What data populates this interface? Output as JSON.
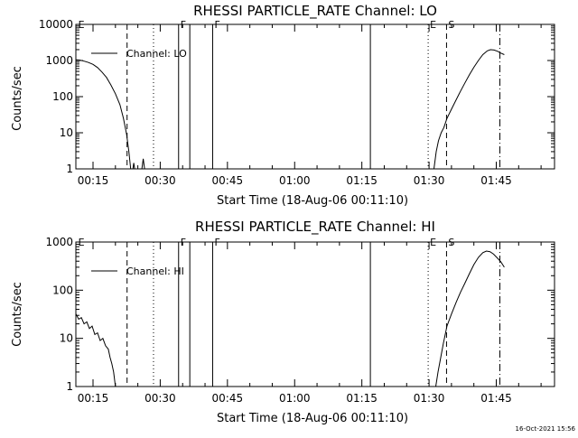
{
  "footer": {
    "timestamp": "16-Oct-2021 15:56"
  },
  "colors": {
    "foreground": "#000000",
    "background": "#ffffff"
  },
  "chart_data": [
    {
      "type": "line",
      "title": "RHESSI PARTICLE_RATE Channel: LO",
      "xlabel": "Start Time (18-Aug-06 00:11:10)",
      "ylabel": "Counts/sec",
      "yscale": "log",
      "xlim_minutes": [
        11.17,
        118.0
      ],
      "ylim": [
        1,
        10000
      ],
      "xtick_values": [
        15,
        30,
        45,
        60,
        75,
        90,
        105
      ],
      "xtick_labels": [
        "00:15",
        "00:30",
        "00:45",
        "01:00",
        "01:15",
        "01:30",
        "01:45"
      ],
      "ytick_values": [
        1,
        10,
        100,
        1000,
        10000
      ],
      "ytick_labels": [
        "1",
        "10",
        "100",
        "1000",
        "10000"
      ],
      "legend": {
        "label": "Channel: LO",
        "position": "top-left"
      },
      "markers": [
        {
          "t": 11.3,
          "style": "none",
          "label": "E"
        },
        {
          "t": 22.6,
          "style": "dashed",
          "label": ""
        },
        {
          "t": 28.5,
          "style": "dotted",
          "label": ""
        },
        {
          "t": 34.1,
          "style": "solid",
          "label": "F"
        },
        {
          "t": 36.6,
          "style": "solid",
          "label": ""
        },
        {
          "t": 41.7,
          "style": "solid",
          "label": "F"
        },
        {
          "t": 76.9,
          "style": "solid",
          "label": ""
        },
        {
          "t": 89.8,
          "style": "dotted",
          "label": "E"
        },
        {
          "t": 93.9,
          "style": "dashed",
          "label": "S"
        },
        {
          "t": 105.8,
          "style": "dashdot",
          "label": ""
        }
      ],
      "series": [
        {
          "segments": [
            [
              [
                11.2,
                1050
              ],
              [
                12.0,
                1030
              ],
              [
                13.0,
                960
              ],
              [
                14.0,
                880
              ],
              [
                15.0,
                780
              ],
              [
                16.0,
                640
              ],
              [
                17.0,
                480
              ],
              [
                18.0,
                340
              ],
              [
                19.0,
                210
              ],
              [
                20.0,
                120
              ],
              [
                21.0,
                60
              ],
              [
                21.8,
                25
              ],
              [
                22.5,
                9
              ],
              [
                23.0,
                3
              ],
              [
                23.4,
                1
              ]
            ],
            [
              [
                23.9,
                1
              ],
              [
                24.1,
                1.45
              ],
              [
                24.3,
                1
              ]
            ],
            [
              [
                25.9,
                1
              ],
              [
                26.2,
                1.9
              ],
              [
                26.5,
                1
              ]
            ],
            [
              [
                91.1,
                1
              ],
              [
                91.6,
                3
              ],
              [
                92.1,
                6
              ],
              [
                92.7,
                10
              ],
              [
                93.3,
                14
              ],
              [
                94.0,
                25
              ],
              [
                95.0,
                45
              ],
              [
                96.0,
                80
              ],
              [
                97.0,
                140
              ],
              [
                98.0,
                240
              ],
              [
                99.0,
                400
              ],
              [
                100.0,
                650
              ],
              [
                101.0,
                1000
              ],
              [
                102.0,
                1450
              ],
              [
                103.0,
                1850
              ],
              [
                103.7,
                2000
              ],
              [
                104.5,
                1950
              ],
              [
                105.3,
                1800
              ],
              [
                106.0,
                1600
              ],
              [
                106.8,
                1450
              ]
            ]
          ]
        }
      ]
    },
    {
      "type": "line",
      "title": "RHESSI PARTICLE_RATE Channel: HI",
      "xlabel": "Start Time (18-Aug-06 00:11:10)",
      "ylabel": "Counts/sec",
      "yscale": "log",
      "xlim_minutes": [
        11.17,
        118.0
      ],
      "ylim": [
        1,
        1000
      ],
      "xtick_values": [
        15,
        30,
        45,
        60,
        75,
        90,
        105
      ],
      "xtick_labels": [
        "00:15",
        "00:30",
        "00:45",
        "01:00",
        "01:15",
        "01:30",
        "01:45"
      ],
      "ytick_values": [
        1,
        10,
        100,
        1000
      ],
      "ytick_labels": [
        "1",
        "10",
        "100",
        "1000"
      ],
      "legend": {
        "label": "Channel: HI",
        "position": "top-left"
      },
      "markers": [
        {
          "t": 11.3,
          "style": "none",
          "label": "E"
        },
        {
          "t": 22.6,
          "style": "dashed",
          "label": ""
        },
        {
          "t": 28.5,
          "style": "dotted",
          "label": ""
        },
        {
          "t": 34.1,
          "style": "solid",
          "label": "F"
        },
        {
          "t": 36.6,
          "style": "solid",
          "label": ""
        },
        {
          "t": 41.7,
          "style": "solid",
          "label": "F"
        },
        {
          "t": 76.9,
          "style": "solid",
          "label": ""
        },
        {
          "t": 89.8,
          "style": "dotted",
          "label": "E"
        },
        {
          "t": 93.9,
          "style": "dashed",
          "label": "S"
        },
        {
          "t": 105.8,
          "style": "dashdot",
          "label": ""
        }
      ],
      "series": [
        {
          "segments": [
            [
              [
                11.2,
                32
              ],
              [
                11.8,
                25
              ],
              [
                12.4,
                27
              ],
              [
                13.0,
                20
              ],
              [
                13.6,
                22
              ],
              [
                14.2,
                16
              ],
              [
                14.8,
                18
              ],
              [
                15.4,
                12
              ],
              [
                16.0,
                13
              ],
              [
                16.6,
                9
              ],
              [
                17.2,
                10
              ],
              [
                17.8,
                7
              ],
              [
                18.4,
                6
              ],
              [
                18.8,
                4
              ],
              [
                19.2,
                3
              ],
              [
                19.6,
                2
              ],
              [
                20.0,
                1
              ]
            ],
            [
              [
                91.5,
                1
              ],
              [
                92.0,
                2
              ],
              [
                92.6,
                4
              ],
              [
                93.2,
                8
              ],
              [
                94.0,
                18
              ],
              [
                95.0,
                32
              ],
              [
                96.0,
                55
              ],
              [
                97.0,
                90
              ],
              [
                98.0,
                140
              ],
              [
                99.0,
                220
              ],
              [
                100.0,
                340
              ],
              [
                101.0,
                480
              ],
              [
                102.0,
                600
              ],
              [
                102.8,
                650
              ],
              [
                103.6,
                630
              ],
              [
                104.4,
                560
              ],
              [
                105.2,
                470
              ],
              [
                106.0,
                390
              ],
              [
                106.8,
                300
              ]
            ]
          ]
        }
      ]
    }
  ]
}
